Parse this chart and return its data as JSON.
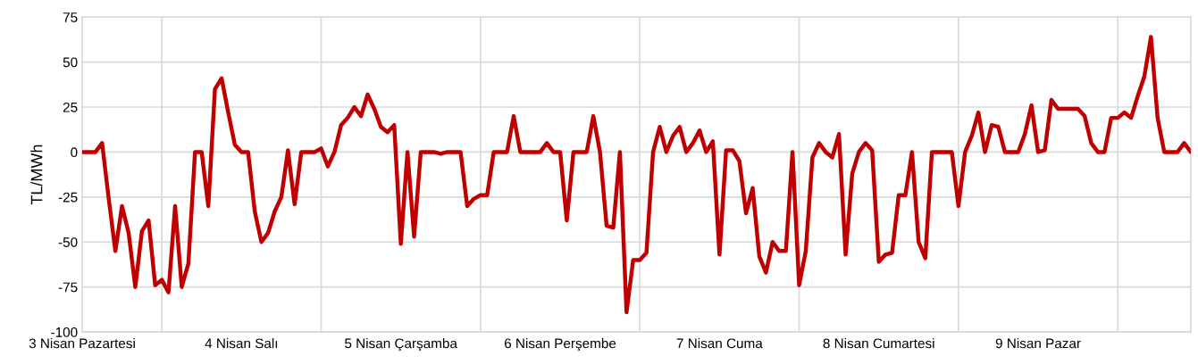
{
  "chart_data": {
    "type": "line",
    "ylabel": "TL/MWh",
    "categories": [
      "3 Nisan Pazartesi",
      null,
      null,
      null,
      null,
      null,
      null,
      null,
      null,
      null,
      null,
      null,
      null,
      null,
      null,
      null,
      null,
      null,
      null,
      null,
      null,
      null,
      null,
      null,
      "4 Nisan Salı",
      null,
      null,
      null,
      null,
      null,
      null,
      null,
      null,
      null,
      null,
      null,
      null,
      null,
      null,
      null,
      null,
      null,
      null,
      null,
      null,
      null,
      null,
      null,
      "5 Nisan Çarşamba",
      null,
      null,
      null,
      null,
      null,
      null,
      null,
      null,
      null,
      null,
      null,
      null,
      null,
      null,
      null,
      null,
      null,
      null,
      null,
      null,
      null,
      null,
      null,
      "6 Nisan Perşembe",
      null,
      null,
      null,
      null,
      null,
      null,
      null,
      null,
      null,
      null,
      null,
      null,
      null,
      null,
      null,
      null,
      null,
      null,
      null,
      null,
      null,
      null,
      null,
      "7 Nisan Cuma",
      null,
      null,
      null,
      null,
      null,
      null,
      null,
      null,
      null,
      null,
      null,
      null,
      null,
      null,
      null,
      null,
      null,
      null,
      null,
      null,
      null,
      null,
      null,
      "8 Nisan Cumartesi",
      null,
      null,
      null,
      null,
      null,
      null,
      null,
      null,
      null,
      null,
      null,
      null,
      null,
      null,
      null,
      null,
      null,
      null,
      null,
      null,
      null,
      null,
      null,
      "9 Nisan Pazar",
      null,
      null,
      null,
      null,
      null,
      null,
      null,
      null,
      null,
      null,
      null,
      null,
      null,
      null,
      null,
      null,
      null,
      null,
      null,
      null,
      null,
      null,
      null
    ],
    "series": [
      {
        "color": "#c00000",
        "values": [
          0,
          0,
          0,
          5,
          -26,
          -55,
          -30,
          -45,
          -75,
          -44,
          -38,
          -74,
          -71,
          -78,
          -30,
          -75,
          -62,
          0,
          0,
          -30,
          35,
          41,
          22,
          4,
          0,
          0,
          -33,
          -50,
          -45,
          -33,
          -25,
          1,
          -29,
          0,
          0,
          0,
          2,
          -8,
          0,
          15,
          19,
          25,
          20,
          32,
          24,
          14,
          11,
          15,
          -51,
          0,
          -47,
          0,
          0,
          0,
          -1,
          0,
          0,
          0,
          -30,
          -26,
          -24,
          -24,
          0,
          0,
          0,
          20,
          0,
          0,
          0,
          0,
          5,
          0,
          0,
          -38,
          0,
          0,
          0,
          20,
          0,
          -41,
          -42,
          0,
          -89,
          -60,
          -60,
          -56,
          0,
          14,
          0,
          9,
          14,
          0,
          5,
          12,
          0,
          6,
          -57,
          1,
          1,
          -5,
          -34,
          -20,
          -58,
          -67,
          -50,
          -55,
          -55,
          0,
          -74,
          -55,
          -3,
          5,
          0,
          -3,
          10,
          -57,
          -12,
          0,
          5,
          1,
          -61,
          -57,
          -56,
          -24,
          -24,
          0,
          -50,
          -59,
          0,
          0,
          0,
          0,
          -30,
          0,
          9,
          22,
          0,
          15,
          14,
          0,
          0,
          0,
          10,
          26,
          0,
          1,
          29,
          24,
          24,
          24,
          24,
          20,
          5,
          0,
          0,
          19,
          19,
          22,
          19,
          31,
          42,
          64,
          19,
          0,
          0,
          0,
          5,
          0
        ]
      }
    ],
    "ylim": [
      -100,
      75
    ],
    "yticks": [
      -100,
      -75,
      -50,
      -25,
      0,
      25,
      50,
      75
    ],
    "grid": true,
    "line_style": "solid",
    "marker": "none"
  }
}
